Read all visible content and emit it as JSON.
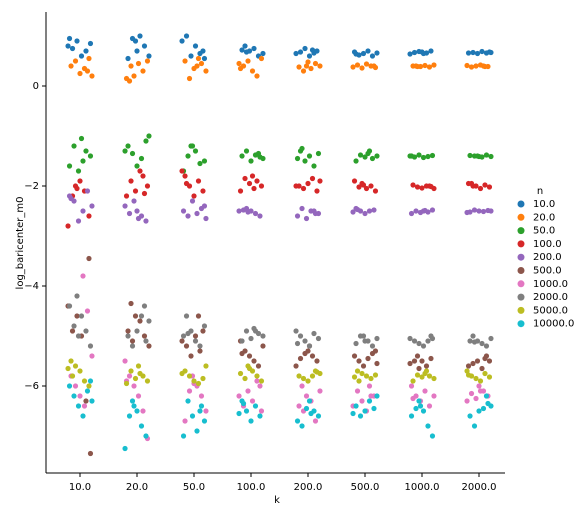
{
  "chart_data": {
    "type": "strip",
    "y_label": "log_baricenter_m0",
    "x_label": "k",
    "legend_title": "n",
    "legend_position": "right",
    "categories": [
      "10.0",
      "20.0",
      "50.0",
      "100.0",
      "200.0",
      "500.0",
      "1000.0",
      "2000.0"
    ],
    "ylim": [
      -7.74,
      1.48
    ],
    "yticks": [
      {
        "value": -6,
        "label": "−6"
      },
      {
        "value": -4,
        "label": "−4"
      },
      {
        "value": -2,
        "label": "−2"
      },
      0
    ],
    "series": [
      {
        "name": "10.0",
        "color": "#1f77b4",
        "values": [
          [
            0.8,
            0.75,
            0.9,
            0.6,
            0.7,
            0.85,
            0.95
          ],
          [
            0.9,
            1.0,
            0.8,
            0.6,
            0.55,
            0.95,
            0.7
          ],
          [
            0.7,
            0.9,
            1.0,
            0.6,
            0.8,
            0.65,
            0.55
          ],
          [
            0.8,
            0.7,
            0.75,
            0.6,
            0.65,
            0.72,
            0.68
          ],
          [
            0.72,
            0.7,
            0.65,
            0.68,
            0.75,
            0.6,
            0.66
          ],
          [
            0.68,
            0.62,
            0.65,
            0.7,
            0.6,
            0.66,
            0.64
          ],
          [
            0.68,
            0.66,
            0.7,
            0.64,
            0.67,
            0.69,
            0.65
          ],
          [
            0.68,
            0.66,
            0.67,
            0.65,
            0.69,
            0.66,
            0.67
          ]
        ]
      },
      {
        "name": "20.0",
        "color": "#ff7f0e",
        "values": [
          [
            0.3,
            0.2,
            0.4,
            0.5,
            0.25,
            0.35,
            0.55
          ],
          [
            0.1,
            0.2,
            0.45,
            0.3,
            0.5,
            0.15,
            0.4
          ],
          [
            0.4,
            0.45,
            0.3,
            0.5,
            0.15,
            0.35,
            0.55
          ],
          [
            0.45,
            0.4,
            0.5,
            0.3,
            0.2,
            0.55,
            0.35
          ],
          [
            0.4,
            0.35,
            0.45,
            0.4,
            0.38,
            0.3,
            0.48
          ],
          [
            0.4,
            0.38,
            0.42,
            0.36,
            0.44,
            0.4,
            0.37
          ],
          [
            0.4,
            0.39,
            0.41,
            0.38,
            0.42,
            0.4,
            0.39
          ],
          [
            0.4,
            0.39,
            0.41,
            0.38,
            0.4,
            0.42,
            0.39
          ]
        ]
      },
      {
        "name": "50.0",
        "color": "#2ca02c",
        "values": [
          [
            -1.05,
            -1.3,
            -1.4,
            -1.6,
            -1.2,
            -1.7,
            -1.5
          ],
          [
            -1.0,
            -1.2,
            -1.35,
            -1.6,
            -1.45,
            -1.1,
            -1.3
          ],
          [
            -1.2,
            -1.3,
            -1.55,
            -1.5,
            -1.7,
            -1.4,
            -1.2
          ],
          [
            -1.35,
            -1.45,
            -1.4,
            -1.3,
            -1.5,
            -1.38,
            -1.42
          ],
          [
            -1.3,
            -1.5,
            -1.4,
            -1.6,
            -1.35,
            -1.45,
            -1.25
          ],
          [
            -1.35,
            -1.45,
            -1.4,
            -1.5,
            -1.38,
            -1.42,
            -1.3
          ],
          [
            -1.4,
            -1.42,
            -1.38,
            -1.43,
            -1.41,
            -1.39,
            -1.4
          ],
          [
            -1.4,
            -1.42,
            -1.38,
            -1.41,
            -1.39,
            -1.4,
            -1.41
          ]
        ]
      },
      {
        "name": "100.0",
        "color": "#d62728",
        "values": [
          [
            -2.0,
            -1.9,
            -2.1,
            -2.6,
            -2.8,
            -2.2,
            -2.05
          ],
          [
            -1.8,
            -2.0,
            -2.2,
            -1.9,
            -2.1,
            -1.7,
            -2.15
          ],
          [
            -1.8,
            -2.0,
            -2.2,
            -1.9,
            -2.1,
            -1.7,
            -1.95
          ],
          [
            -1.8,
            -1.9,
            -2.0,
            -2.1,
            -1.85,
            -1.95,
            -2.05
          ],
          [
            -1.9,
            -2.0,
            -2.05,
            -1.95,
            -1.85,
            -2.1,
            -2.0
          ],
          [
            -1.95,
            -2.05,
            -2.0,
            -2.1,
            -1.9,
            -2.02,
            -1.98
          ],
          [
            -2.0,
            -2.05,
            -1.98,
            -2.02,
            -2.04,
            -2.0,
            -2.01
          ],
          [
            -1.95,
            -2.0,
            -2.05,
            -1.98,
            -2.02,
            -1.95,
            -2.0
          ]
        ]
      },
      {
        "name": "200.0",
        "color": "#9467bd",
        "values": [
          [
            -2.2,
            -2.3,
            -2.7,
            -2.5,
            -2.1,
            -2.4,
            -2.25
          ],
          [
            -2.5,
            -2.6,
            -2.7,
            -2.4,
            -2.55,
            -2.3,
            -2.65
          ],
          [
            -2.4,
            -2.5,
            -2.6,
            -2.3,
            -2.55,
            -2.45,
            -2.65
          ],
          [
            -2.45,
            -2.5,
            -2.55,
            -2.6,
            -2.5,
            -2.48,
            -2.52
          ],
          [
            -2.5,
            -2.55,
            -2.6,
            -2.45,
            -2.65,
            -2.5,
            -2.55
          ],
          [
            -2.45,
            -2.5,
            -2.55,
            -2.5,
            -2.48,
            -2.52,
            -2.47
          ],
          [
            -2.5,
            -2.52,
            -2.48,
            -2.55,
            -2.5,
            -2.53,
            -2.49
          ],
          [
            -2.5,
            -2.52,
            -2.48,
            -2.5,
            -2.51,
            -2.49,
            -2.53
          ]
        ]
      },
      {
        "name": "500.0",
        "color": "#8c564b",
        "values": [
          [
            -3.45,
            -4.4,
            -4.9,
            -4.6,
            -5.0,
            -6.3,
            -7.35
          ],
          [
            -4.35,
            -4.6,
            -4.7,
            -5.0,
            -5.2,
            -4.9,
            -5.1
          ],
          [
            -4.6,
            -4.9,
            -5.1,
            -5.2,
            -5.4,
            -5.0,
            -5.3
          ],
          [
            -5.1,
            -5.3,
            -5.4,
            -5.5,
            -5.6,
            -5.2,
            -5.35
          ],
          [
            -5.3,
            -5.4,
            -5.5,
            -5.6,
            -5.45,
            -5.35,
            -5.2
          ],
          [
            -5.3,
            -5.4,
            -5.5,
            -5.6,
            -5.45,
            -5.35,
            -5.55
          ],
          [
            -5.4,
            -5.5,
            -5.6,
            -5.45,
            -5.55,
            -5.5,
            -5.65
          ],
          [
            -5.45,
            -5.5,
            -5.6,
            -5.55,
            -5.5,
            -5.65,
            -5.4
          ]
        ]
      },
      {
        "name": "1000.0",
        "color": "#e377c2",
        "values": [
          [
            -3.8,
            -4.5,
            -5.4,
            -5.8,
            -6.0,
            -6.2,
            -6.4
          ],
          [
            -5.5,
            -5.8,
            -6.0,
            -6.2,
            -6.5,
            -7.05,
            -5.9
          ],
          [
            -5.8,
            -6.0,
            -6.2,
            -6.5,
            -6.7,
            -6.1,
            -5.95
          ],
          [
            -6.0,
            -6.2,
            -6.4,
            -6.1,
            -6.3,
            -5.9,
            -6.5
          ],
          [
            -6.0,
            -6.2,
            -6.3,
            -6.7,
            -6.1,
            -6.4,
            -6.5
          ],
          [
            -6.0,
            -6.2,
            -6.4,
            -6.1,
            -6.3,
            -6.5,
            -6.2
          ],
          [
            -6.0,
            -6.2,
            -6.3,
            -6.1,
            -6.4,
            -6.2,
            -6.25
          ],
          [
            -6.0,
            -6.1,
            -6.2,
            -6.3,
            -6.15,
            -6.25,
            -6.1
          ]
        ]
      },
      {
        "name": "2000.0",
        "color": "#7f7f7f",
        "values": [
          [
            -4.2,
            -4.6,
            -4.9,
            -5.2,
            -4.4,
            -4.8,
            -5.0
          ],
          [
            -4.4,
            -4.7,
            -5.0,
            -5.2,
            -4.9,
            -4.6,
            -5.1
          ],
          [
            -4.6,
            -4.9,
            -5.1,
            -5.2,
            -4.8,
            -5.0,
            -4.95
          ],
          [
            -4.85,
            -4.95,
            -5.0,
            -5.1,
            -4.9,
            -5.05,
            -4.9
          ],
          [
            -4.9,
            -5.0,
            -5.1,
            -5.2,
            -4.95,
            -5.05,
            -5.15
          ],
          [
            -5.0,
            -5.1,
            -5.2,
            -5.05,
            -5.15,
            -5.0,
            -5.1
          ],
          [
            -5.0,
            -5.05,
            -5.1,
            -5.15,
            -5.2,
            -5.1,
            -5.05
          ],
          [
            -5.0,
            -5.1,
            -5.15,
            -5.2,
            -5.05,
            -5.1,
            -5.12
          ]
        ]
      },
      {
        "name": "5000.0",
        "color": "#bcbd22",
        "values": [
          [
            -5.5,
            -5.6,
            -5.7,
            -5.9,
            -6.0,
            -5.65,
            -5.8
          ],
          [
            -5.6,
            -5.8,
            -5.9,
            -5.95,
            -5.7,
            -5.85,
            -5.75
          ],
          [
            -5.6,
            -5.7,
            -5.8,
            -5.9,
            -5.95,
            -5.85,
            -5.75
          ],
          [
            -5.6,
            -5.7,
            -5.8,
            -5.9,
            -5.75,
            -5.85,
            -5.65
          ],
          [
            -5.7,
            -5.75,
            -5.8,
            -5.85,
            -5.9,
            -5.8,
            -5.72
          ],
          [
            -5.7,
            -5.75,
            -5.8,
            -5.85,
            -5.78,
            -5.82,
            -5.9
          ],
          [
            -5.75,
            -5.8,
            -5.85,
            -5.9,
            -5.78,
            -5.82,
            -5.7
          ],
          [
            -5.7,
            -5.8,
            -5.85,
            -5.9,
            -5.75,
            -5.82,
            -5.78
          ]
        ]
      },
      {
        "name": "10000.0",
        "color": "#17becf",
        "values": [
          [
            -5.9,
            -6.0,
            -6.2,
            -6.4,
            -6.6,
            -6.1,
            -6.3
          ],
          [
            -6.3,
            -6.5,
            -6.8,
            -7.0,
            -7.25,
            -6.6,
            -6.4
          ],
          [
            -6.5,
            -6.7,
            -7.0,
            -6.3,
            -6.6,
            -6.9,
            -6.4
          ],
          [
            -6.3,
            -6.5,
            -6.7,
            -6.4,
            -6.6,
            -6.55,
            -6.35
          ],
          [
            -6.3,
            -6.5,
            -6.6,
            -6.7,
            -6.8,
            -6.45,
            -6.55
          ],
          [
            -6.2,
            -6.4,
            -6.6,
            -6.5,
            -6.3,
            -6.45,
            -6.55
          ],
          [
            -6.3,
            -6.5,
            -6.8,
            -7.0,
            -6.6,
            -6.45,
            -6.4
          ],
          [
            -6.2,
            -6.4,
            -6.6,
            -6.8,
            -6.5,
            -6.45,
            -6.35
          ]
        ]
      }
    ]
  }
}
